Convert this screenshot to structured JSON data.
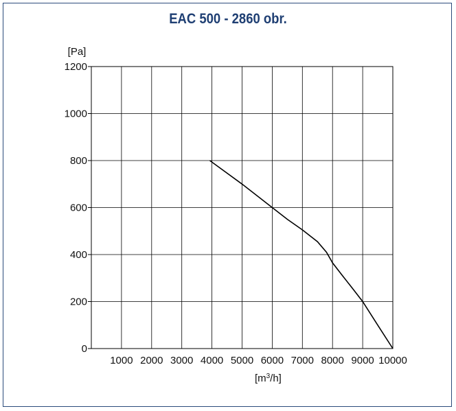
{
  "chart_data": {
    "type": "line",
    "title": "EAC 500 - 2860 obr.",
    "ylabel": "[Pa]",
    "xlabel_main": "[m",
    "xlabel_sup": "3",
    "xlabel_tail": "/h]",
    "xlim": [
      0,
      10000
    ],
    "ylim": [
      0,
      1200
    ],
    "x_ticks": [
      1000,
      2000,
      3000,
      4000,
      5000,
      6000,
      7000,
      8000,
      9000,
      10000
    ],
    "x_tick_labels": [
      "1000",
      "2000",
      "3000",
      "4000",
      "5000",
      "6000",
      "7000",
      "8000",
      "9000",
      "10000"
    ],
    "y_ticks": [
      0,
      200,
      400,
      600,
      800,
      1000,
      1200
    ],
    "y_tick_labels": [
      "0",
      "200",
      "400",
      "600",
      "800",
      "1000",
      "1200"
    ],
    "grid": true,
    "line_color": "#000000",
    "series": [
      {
        "x": [
          3930,
          5000,
          6000,
          6500,
          7000,
          7500,
          7800,
          8000,
          8300,
          8700,
          9000,
          9500,
          10000
        ],
        "y": [
          800,
          700,
          600,
          550,
          505,
          455,
          410,
          365,
          315,
          250,
          200,
          100,
          0
        ]
      }
    ]
  }
}
